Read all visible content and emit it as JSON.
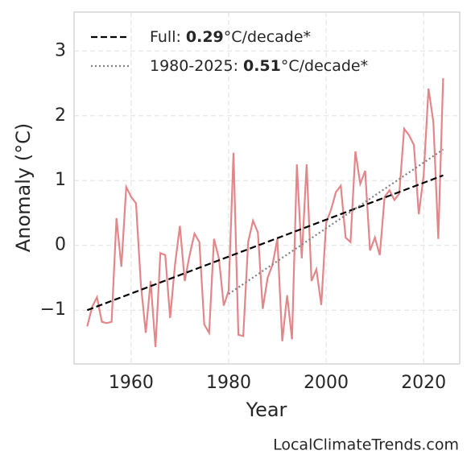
{
  "chart_data": {
    "type": "line",
    "xlabel": "Year",
    "ylabel": "Anomaly (°C)",
    "footer": "LocalClimateTrends.com",
    "xlim": [
      1948.3,
      2027.4
    ],
    "ylim": [
      -1.83,
      3.6
    ],
    "xticks": [
      1960,
      1980,
      2000,
      2020
    ],
    "yticks": [
      {
        "value": -1,
        "label": "−1"
      },
      0,
      1,
      2,
      3
    ],
    "grid": true,
    "legend": "upper left",
    "series": [
      {
        "color": "#e3868a",
        "style": "solid",
        "x": [
          1951,
          1952,
          1953,
          1954,
          1955,
          1956,
          1957,
          1958,
          1959,
          1960,
          1961,
          1962,
          1963,
          1964,
          1965,
          1966,
          1967,
          1968,
          1969,
          1970,
          1971,
          1972,
          1973,
          1974,
          1975,
          1976,
          1977,
          1978,
          1979,
          1980,
          1981,
          1982,
          1983,
          1984,
          1985,
          1986,
          1987,
          1988,
          1989,
          1990,
          1991,
          1992,
          1993,
          1994,
          1995,
          1996,
          1997,
          1998,
          1999,
          2000,
          2001,
          2002,
          2003,
          2004,
          2005,
          2006,
          2007,
          2008,
          2009,
          2010,
          2011,
          2012,
          2013,
          2014,
          2015,
          2016,
          2017,
          2018,
          2019,
          2020,
          2021,
          2022,
          2023,
          2024
        ],
        "values": [
          -1.25,
          -0.95,
          -0.8,
          -1.18,
          -1.2,
          -1.18,
          0.42,
          -0.33,
          0.9,
          0.75,
          0.65,
          -0.6,
          -1.35,
          -0.55,
          -1.57,
          -0.12,
          -0.15,
          -1.12,
          -0.3,
          0.3,
          -0.55,
          -0.15,
          0.18,
          0.05,
          -1.22,
          -1.35,
          0.1,
          -0.2,
          -0.93,
          -0.7,
          1.43,
          -1.38,
          -1.4,
          0.05,
          0.38,
          0.2,
          -0.98,
          -0.5,
          -0.3,
          0.1,
          -1.48,
          -0.77,
          -1.45,
          1.25,
          -0.2,
          1.25,
          -0.55,
          -0.37,
          -0.92,
          0.35,
          0.55,
          0.82,
          0.92,
          0.12,
          0.05,
          1.45,
          0.95,
          1.15,
          -0.08,
          0.12,
          -0.15,
          0.75,
          0.85,
          0.7,
          0.8,
          1.8,
          1.7,
          1.55,
          0.48,
          1.08,
          2.42,
          1.9,
          0.1,
          2.58
        ]
      },
      {
        "name": "Full:",
        "rate": "0.29",
        "unit": "°C/decade*",
        "color": "#000000",
        "style": "dashed",
        "x": [
          1951,
          2024
        ],
        "values": [
          -1.0,
          1.08
        ]
      },
      {
        "name": "1980-2025:",
        "rate": "0.51",
        "unit": "°C/decade*",
        "color": "#808080",
        "style": "dotted",
        "x": [
          1980,
          2024
        ],
        "values": [
          -0.75,
          1.48
        ]
      }
    ]
  }
}
